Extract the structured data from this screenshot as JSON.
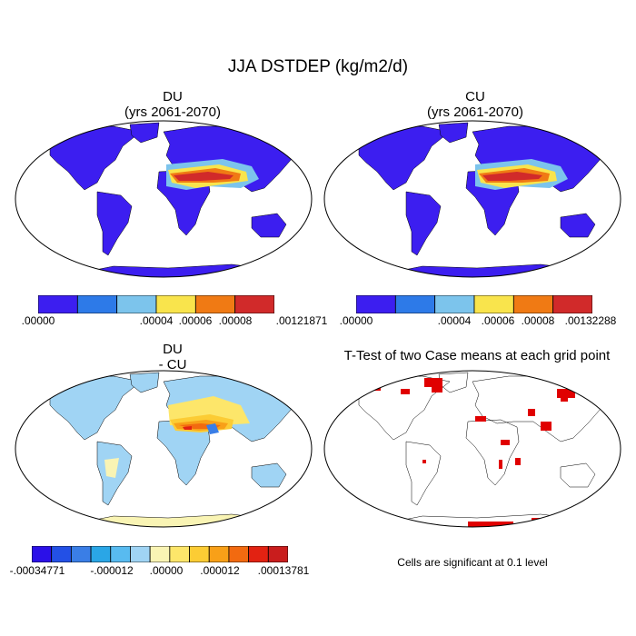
{
  "title": "JJA DSTDEP (kg/m2/d)",
  "panels": {
    "du": {
      "title": "DU",
      "subtitle": "(yrs 2061-2070)"
    },
    "cu": {
      "title": "CU",
      "subtitle": "(yrs 2061-2070)"
    },
    "diff": {
      "title": "DU",
      "subtitle": "- CU"
    },
    "ttest": {
      "title": "T-Test of two Case means at each grid point"
    }
  },
  "colorbars": {
    "du": {
      "colors": [
        "#3c1ef0",
        "#2d7ae8",
        "#7cc4ec",
        "#f9e44c",
        "#f07a14",
        "#d12a2a"
      ],
      "labels": [
        ".00000",
        ".00004",
        ".00006",
        ".00008",
        ".00121871"
      ]
    },
    "cu": {
      "colors": [
        "#3c1ef0",
        "#2d7ae8",
        "#7cc4ec",
        "#f9e44c",
        "#f07a14",
        "#d12a2a"
      ],
      "labels": [
        ".00000",
        ".00004",
        ".00006",
        ".00008",
        ".00132288"
      ]
    },
    "diff": {
      "colors": [
        "#2b10e8",
        "#2350e6",
        "#3a7ee6",
        "#2aa6e6",
        "#58bbf0",
        "#a0d4f4",
        "#f9f4b4",
        "#fde66a",
        "#fccc34",
        "#f8a018",
        "#f26a10",
        "#e22212",
        "#c91d1d"
      ],
      "labels": [
        "-.00034771",
        "-.000012",
        ".00000",
        ".000012",
        ".00013781"
      ]
    }
  },
  "footnote": "Cells are significant at 0.1 level",
  "colors": {
    "ocean": "#ffffff",
    "coast": "#000000",
    "significant": "#e00000"
  }
}
